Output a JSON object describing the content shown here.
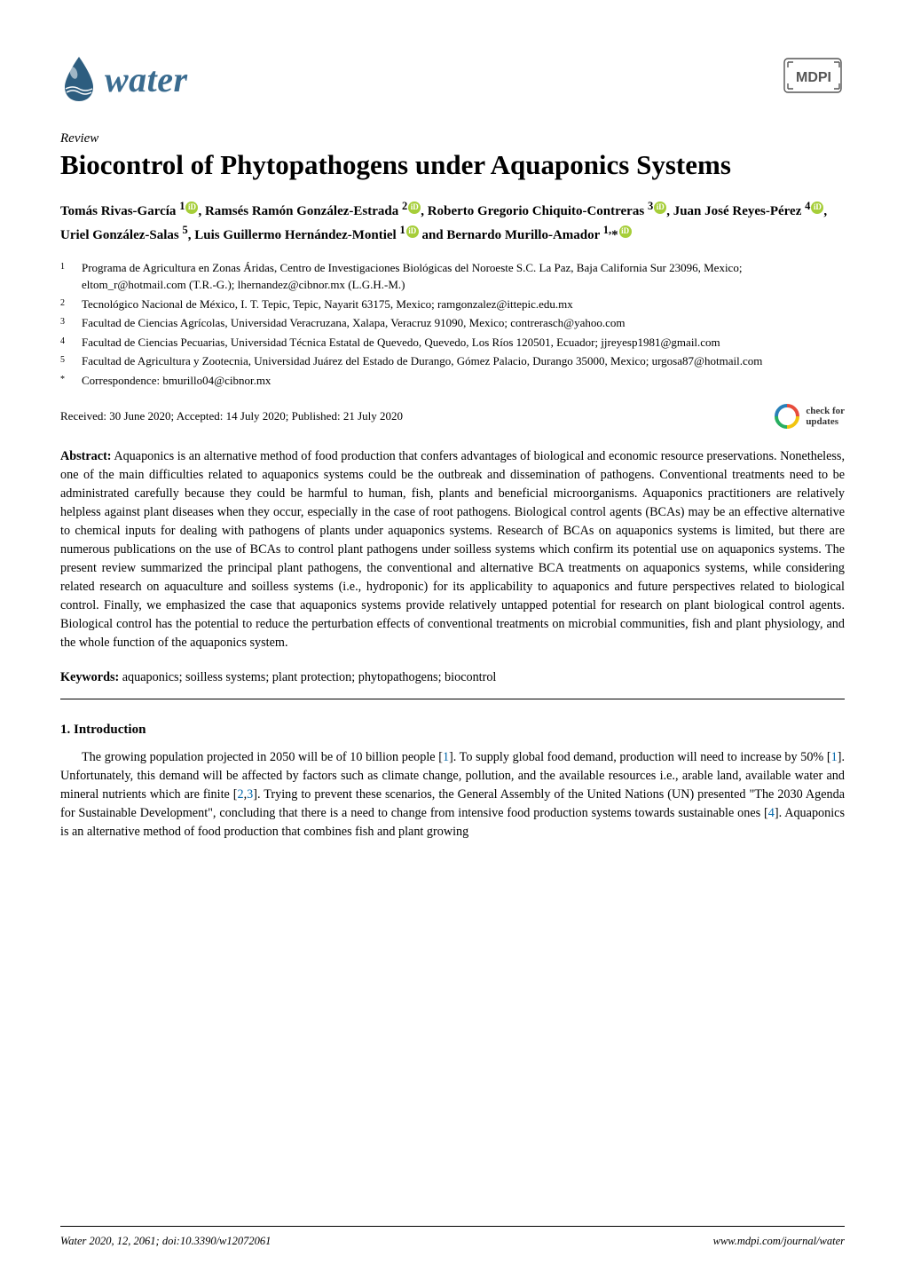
{
  "journal": {
    "name": "water",
    "logo_color": "#3a6b8f",
    "drop_color": "#2d5d7f"
  },
  "publisher": {
    "name": "MDPI",
    "logo_fill": "#ffffff",
    "logo_stroke": "#444444"
  },
  "article_type": "Review",
  "title": "Biocontrol of Phytopathogens under Aquaponics Systems",
  "authors_html": "Tomás Rivas-García <sup>1</sup><span class=\"orcid\">iD</span>, Ramsés Ramón González-Estrada <sup>2</sup><span class=\"orcid\">iD</span>, Roberto Gregorio Chiquito-Contreras <sup>3</sup><span class=\"orcid\">iD</span>, Juan José Reyes-Pérez <sup>4</sup><span class=\"orcid\">iD</span>, Uriel González-Salas <sup>5</sup>, Luis Guillermo Hernández-Montiel <sup>1</sup><span class=\"orcid\">iD</span> and Bernardo Murillo-Amador <sup>1,</sup>*<span class=\"orcid\">iD</span>",
  "affiliations": [
    {
      "num": "1",
      "text": "Programa de Agricultura en Zonas Áridas, Centro de Investigaciones Biológicas del Noroeste S.C. La Paz, Baja California Sur 23096, Mexico; eltom_r@hotmail.com (T.R.-G.); lhernandez@cibnor.mx (L.G.H.-M.)"
    },
    {
      "num": "2",
      "text": "Tecnológico Nacional de México, I. T. Tepic, Tepic, Nayarit 63175, Mexico; ramgonzalez@ittepic.edu.mx"
    },
    {
      "num": "3",
      "text": "Facultad de Ciencias Agrícolas, Universidad Veracruzana, Xalapa, Veracruz 91090, Mexico; contrerasch@yahoo.com"
    },
    {
      "num": "4",
      "text": "Facultad de Ciencias Pecuarias, Universidad Técnica Estatal de Quevedo, Quevedo, Los Ríos 120501, Ecuador; jjreyesp1981@gmail.com"
    },
    {
      "num": "5",
      "text": "Facultad de Agricultura y Zootecnia, Universidad Juárez del Estado de Durango, Gómez Palacio, Durango 35000, Mexico; urgosa87@hotmail.com"
    },
    {
      "num": "*",
      "text": "Correspondence: bmurillo04@cibnor.mx"
    }
  ],
  "dates": "Received: 30 June 2020; Accepted: 14 July 2020; Published: 21 July 2020",
  "updates": {
    "line1": "check for",
    "line2": "updates"
  },
  "abstract": {
    "label": "Abstract:",
    "text": " Aquaponics is an alternative method of food production that confers advantages of biological and economic resource preservations. Nonetheless, one of the main difficulties related to aquaponics systems could be the outbreak and dissemination of pathogens. Conventional treatments need to be administrated carefully because they could be harmful to human, fish, plants and beneficial microorganisms. Aquaponics practitioners are relatively helpless against plant diseases when they occur, especially in the case of root pathogens. Biological control agents (BCAs) may be an effective alternative to chemical inputs for dealing with pathogens of plants under aquaponics systems. Research of BCAs on aquaponics systems is limited, but there are numerous publications on the use of BCAs to control plant pathogens under soilless systems which confirm its potential use on aquaponics systems. The present review summarized the principal plant pathogens, the conventional and alternative BCA treatments on aquaponics systems, while considering related research on aquaculture and soilless systems (i.e., hydroponic) for its applicability to aquaponics and future perspectives related to biological control. Finally, we emphasized the case that aquaponics systems provide relatively untapped potential for research on plant biological control agents. Biological control has the potential to reduce the perturbation effects of conventional treatments on microbial communities, fish and plant physiology, and the whole function of the aquaponics system."
  },
  "keywords": {
    "label": "Keywords:",
    "text": " aquaponics; soilless systems; plant protection; phytopathogens; biocontrol"
  },
  "section": {
    "number": "1.",
    "title": "Introduction"
  },
  "intro_html": "The growing population projected in 2050 will be of 10 billion people [<span class=\"cite\">1</span>]. To supply global food demand, production will need to increase by 50% [<span class=\"cite\">1</span>]. Unfortunately, this demand will be affected by factors such as climate change, pollution, and the available resources i.e., arable land, available water and mineral nutrients which are finite [<span class=\"cite\">2</span>,<span class=\"cite\">3</span>]. Trying to prevent these scenarios, the General Assembly of the United Nations (UN) presented \"The 2030 Agenda for Sustainable Development\", concluding that there is a need to change from intensive food production systems towards sustainable ones [<span class=\"cite\">4</span>]. Aquaponics is an alternative method of food production that combines fish and plant growing",
  "footer": {
    "left": "Water 2020, 12, 2061; doi:10.3390/w12072061",
    "right": "www.mdpi.com/journal/water"
  },
  "colors": {
    "text": "#000000",
    "background": "#ffffff",
    "orcid": "#a6ce39",
    "citation": "#0066aa",
    "updates_ring1": "#e74c3c",
    "updates_ring2": "#f1c40f",
    "updates_ring3": "#27ae60",
    "updates_ring4": "#2980b9"
  },
  "typography": {
    "title_fontsize": 31,
    "body_fontsize": 14.2,
    "author_fontsize": 15,
    "affil_fontsize": 13,
    "footer_fontsize": 12.5
  }
}
